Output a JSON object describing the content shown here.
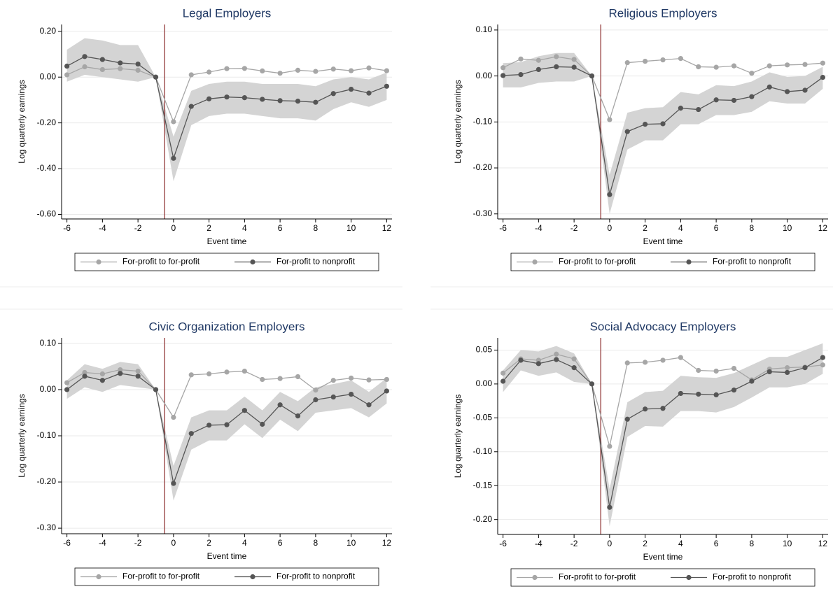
{
  "chart_data": [
    {
      "type": "line",
      "title": "Legal Employers",
      "xlabel": "Event time",
      "ylabel": "Log quarterly earnings",
      "x": [
        -6,
        -5,
        -4,
        -3,
        -2,
        -1,
        0,
        1,
        2,
        3,
        4,
        5,
        6,
        7,
        8,
        9,
        10,
        11,
        12
      ],
      "xlim": [
        -6.3,
        12.3
      ],
      "xticks": [
        -6,
        -4,
        -2,
        0,
        2,
        4,
        6,
        8,
        10,
        12
      ],
      "ylim": [
        -0.62,
        0.23
      ],
      "yticks": [
        {
          "value": 0.2,
          "label": "0.20"
        },
        {
          "value": 0,
          "label": "0.00"
        },
        {
          "value": -0.2,
          "label": "-0.20"
        },
        {
          "value": -0.4,
          "label": "-0.40"
        },
        {
          "value": -0.6,
          "label": "-0.60"
        }
      ],
      "grid": true,
      "vline": -0.5,
      "vline_color": "#8b2a2a",
      "legend": "bottom",
      "series": [
        {
          "name": "For-profit to for-profit",
          "color": "#a6a6a6",
          "values": [
            0.01,
            0.045,
            0.033,
            0.037,
            0.03,
            0,
            -0.195,
            0.01,
            0.022,
            0.037,
            0.038,
            0.027,
            0.017,
            0.03,
            0.025,
            0.035,
            0.028,
            0.04,
            0.028
          ]
        },
        {
          "name": "For-profit to nonprofit",
          "color": "#555555",
          "band_color": "#d4d4d4",
          "values": [
            0.048,
            0.09,
            0.077,
            0.062,
            0.057,
            0,
            -0.355,
            -0.128,
            -0.095,
            -0.087,
            -0.09,
            -0.097,
            -0.103,
            -0.105,
            -0.11,
            -0.072,
            -0.053,
            -0.07,
            -0.04
          ],
          "upper": [
            0.12,
            0.17,
            0.16,
            0.14,
            0.14,
            0,
            -0.26,
            -0.06,
            -0.03,
            -0.02,
            -0.02,
            -0.03,
            -0.03,
            -0.03,
            -0.04,
            -0.01,
            0.0,
            -0.01,
            0.02
          ],
          "lower": [
            -0.02,
            0.01,
            0.0,
            -0.01,
            -0.02,
            0,
            -0.455,
            -0.21,
            -0.17,
            -0.16,
            -0.16,
            -0.17,
            -0.18,
            -0.18,
            -0.19,
            -0.14,
            -0.11,
            -0.13,
            -0.1
          ]
        }
      ]
    },
    {
      "type": "line",
      "title": "Religious Employers",
      "xlabel": "Event time",
      "ylabel": "Log quarterly earnings",
      "x": [
        -6,
        -5,
        -4,
        -3,
        -2,
        -1,
        0,
        1,
        2,
        3,
        4,
        5,
        6,
        7,
        8,
        9,
        10,
        11,
        12
      ],
      "xlim": [
        -6.3,
        12.3
      ],
      "xticks": [
        -6,
        -4,
        -2,
        0,
        2,
        4,
        6,
        8,
        10,
        12
      ],
      "ylim": [
        -0.311,
        0.112
      ],
      "yticks": [
        {
          "value": 0.1,
          "label": "0.10"
        },
        {
          "value": 0,
          "label": "0.00"
        },
        {
          "value": -0.1,
          "label": "-0.10"
        },
        {
          "value": -0.2,
          "label": "-0.20"
        },
        {
          "value": -0.3,
          "label": "-0.30"
        }
      ],
      "grid": true,
      "vline": -0.5,
      "vline_color": "#8b2a2a",
      "legend": "bottom",
      "series": [
        {
          "name": "For-profit to for-profit",
          "color": "#a6a6a6",
          "values": [
            0.018,
            0.037,
            0.034,
            0.042,
            0.036,
            0,
            -0.095,
            0.029,
            0.032,
            0.035,
            0.038,
            0.02,
            0.019,
            0.022,
            0.006,
            0.022,
            0.024,
            0.025,
            0.028
          ]
        },
        {
          "name": "For-profit to nonprofit",
          "color": "#555555",
          "band_color": "#d4d4d4",
          "values": [
            0.001,
            0.003,
            0.014,
            0.02,
            0.019,
            0,
            -0.258,
            -0.121,
            -0.105,
            -0.104,
            -0.07,
            -0.073,
            -0.052,
            -0.053,
            -0.045,
            -0.024,
            -0.034,
            -0.031,
            -0.003
          ],
          "upper": [
            0.028,
            0.03,
            0.043,
            0.05,
            0.05,
            0,
            -0.215,
            -0.08,
            -0.07,
            -0.068,
            -0.035,
            -0.04,
            -0.02,
            -0.022,
            -0.012,
            0.008,
            -0.002,
            0.0,
            0.02
          ],
          "lower": [
            -0.025,
            -0.025,
            -0.015,
            -0.012,
            -0.012,
            0,
            -0.3,
            -0.16,
            -0.14,
            -0.14,
            -0.105,
            -0.105,
            -0.085,
            -0.085,
            -0.078,
            -0.055,
            -0.06,
            -0.06,
            -0.028
          ]
        }
      ]
    },
    {
      "type": "line",
      "title": "Civic Organization Employers",
      "xlabel": "Event time",
      "ylabel": "Log quarterly earnings",
      "x": [
        -6,
        -5,
        -4,
        -3,
        -2,
        -1,
        0,
        1,
        2,
        3,
        4,
        5,
        6,
        7,
        8,
        9,
        10,
        11,
        12
      ],
      "xlim": [
        -6.3,
        12.3
      ],
      "xticks": [
        -6,
        -4,
        -2,
        0,
        2,
        4,
        6,
        8,
        10,
        12
      ],
      "ylim": [
        -0.312,
        0.112
      ],
      "yticks": [
        {
          "value": 0.1,
          "label": "0.10"
        },
        {
          "value": 0,
          "label": "0.00"
        },
        {
          "value": -0.1,
          "label": "-0.10"
        },
        {
          "value": -0.2,
          "label": "-0.20"
        },
        {
          "value": -0.3,
          "label": "-0.30"
        }
      ],
      "grid": true,
      "vline": -0.5,
      "vline_color": "#8b2a2a",
      "legend": "bottom",
      "series": [
        {
          "name": "For-profit to for-profit",
          "color": "#a6a6a6",
          "values": [
            0.015,
            0.037,
            0.034,
            0.043,
            0.04,
            0,
            -0.06,
            0.032,
            0.034,
            0.038,
            0.04,
            0.022,
            0.024,
            0.028,
            -0.001,
            0.02,
            0.025,
            0.021,
            0.022
          ]
        },
        {
          "name": "For-profit to nonprofit",
          "color": "#555555",
          "band_color": "#d4d4d4",
          "values": [
            0,
            0.029,
            0.02,
            0.035,
            0.029,
            0,
            -0.203,
            -0.095,
            -0.077,
            -0.076,
            -0.045,
            -0.075,
            -0.033,
            -0.057,
            -0.022,
            -0.016,
            -0.01,
            -0.033,
            -0.003
          ],
          "upper": [
            0.02,
            0.055,
            0.045,
            0.06,
            0.055,
            0,
            -0.165,
            -0.06,
            -0.045,
            -0.045,
            -0.015,
            -0.045,
            -0.005,
            -0.025,
            0.005,
            0.012,
            0.02,
            -0.005,
            0.025
          ],
          "lower": [
            -0.02,
            0.005,
            -0.005,
            0.01,
            0.005,
            0,
            -0.24,
            -0.13,
            -0.11,
            -0.11,
            -0.075,
            -0.105,
            -0.065,
            -0.09,
            -0.05,
            -0.045,
            -0.04,
            -0.06,
            -0.03
          ]
        }
      ]
    },
    {
      "type": "line",
      "title": "Social Advocacy Employers",
      "xlabel": "Event time",
      "ylabel": "Log quarterly earnings",
      "x": [
        -6,
        -5,
        -4,
        -3,
        -2,
        -1,
        0,
        1,
        2,
        3,
        4,
        5,
        6,
        7,
        8,
        9,
        10,
        11,
        12
      ],
      "xlim": [
        -6.3,
        12.3
      ],
      "xticks": [
        -6,
        -4,
        -2,
        0,
        2,
        4,
        6,
        8,
        10,
        12
      ],
      "ylim": [
        -0.222,
        0.068
      ],
      "yticks": [
        {
          "value": 0.05,
          "label": "0.05"
        },
        {
          "value": 0,
          "label": "0.00"
        },
        {
          "value": -0.05,
          "label": "-0.05"
        },
        {
          "value": -0.1,
          "label": "-0.10"
        },
        {
          "value": -0.15,
          "label": "-0.15"
        },
        {
          "value": -0.2,
          "label": "-0.20"
        }
      ],
      "grid": true,
      "vline": -0.5,
      "vline_color": "#8b2a2a",
      "legend": "bottom",
      "series": [
        {
          "name": "For-profit to for-profit",
          "color": "#a6a6a6",
          "values": [
            0.016,
            0.037,
            0.035,
            0.044,
            0.037,
            0,
            -0.092,
            0.031,
            0.032,
            0.035,
            0.039,
            0.02,
            0.019,
            0.023,
            0.006,
            0.022,
            0.024,
            0.025,
            0.028
          ]
        },
        {
          "name": "For-profit to nonprofit",
          "color": "#555555",
          "band_color": "#d4d4d4",
          "values": [
            0.004,
            0.035,
            0.03,
            0.036,
            0.024,
            0,
            -0.182,
            -0.052,
            -0.037,
            -0.036,
            -0.014,
            -0.015,
            -0.016,
            -0.009,
            0.004,
            0.018,
            0.017,
            0.024,
            0.039
          ],
          "upper": [
            0.02,
            0.05,
            0.048,
            0.056,
            0.045,
            0,
            -0.155,
            -0.027,
            -0.012,
            -0.01,
            0.012,
            0.01,
            0.009,
            0.016,
            0.028,
            0.04,
            0.04,
            0.05,
            0.06
          ],
          "lower": [
            -0.012,
            0.02,
            0.012,
            0.017,
            0.003,
            0,
            -0.21,
            -0.078,
            -0.062,
            -0.063,
            -0.04,
            -0.04,
            -0.042,
            -0.034,
            -0.02,
            -0.005,
            -0.005,
            0.0,
            0.015
          ]
        }
      ]
    }
  ]
}
